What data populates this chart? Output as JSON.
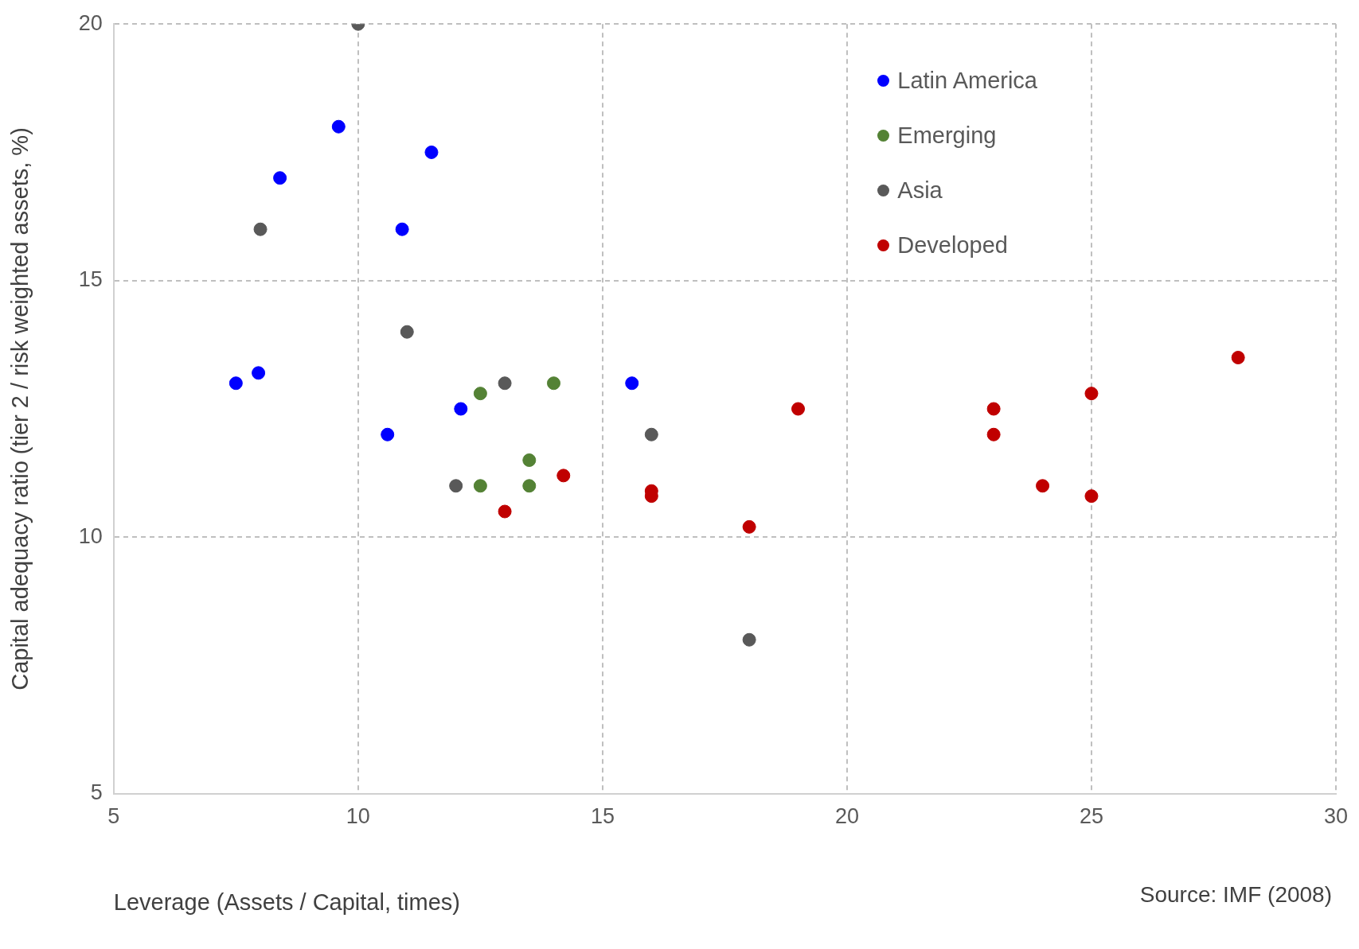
{
  "chart_data": {
    "type": "scatter",
    "xlabel": "Leverage (Assets / Capital, times)",
    "ylabel": "Capital adequacy ratio (tier 2 / risk weighted assets, %)",
    "annotations": [
      "Source: IMF (2008)"
    ],
    "xlim": [
      5,
      30
    ],
    "xticks": [
      5,
      10,
      15,
      20,
      25,
      30
    ],
    "ylim": [
      5,
      20
    ],
    "yticks": [
      5,
      10,
      15,
      20
    ],
    "grid": true,
    "legend": "top right",
    "marker": "circle",
    "series": [
      {
        "name": "Latin America",
        "color": "#0000ff",
        "x": [
          7.5,
          7.96,
          8.4,
          9.6,
          10.9,
          11.5,
          10.6,
          12.1,
          15.6
        ],
        "values": [
          13.0,
          13.2,
          17.0,
          18.0,
          16.0,
          17.5,
          12.0,
          12.5,
          13.0
        ]
      },
      {
        "name": "Emerging",
        "color": "#548235",
        "x": [
          12.5,
          14.0,
          13.5,
          12.5,
          13.5
        ],
        "values": [
          12.8,
          13.0,
          11.5,
          11.0,
          11.0
        ]
      },
      {
        "name": "Asia",
        "color": "#595959",
        "x": [
          10.0,
          8.0,
          11.0,
          13.0,
          16.0,
          12.0,
          18.0
        ],
        "values": [
          20.0,
          16.0,
          14.0,
          13.0,
          12.0,
          11.0,
          8.0
        ]
      },
      {
        "name": "Developed",
        "color": "#c00000",
        "x": [
          13.0,
          14.2,
          16.0,
          16.0,
          18.0,
          19.0,
          23.0,
          23.0,
          24.0,
          25.0,
          25.0,
          28.0
        ],
        "values": [
          10.5,
          11.2,
          10.9,
          10.8,
          10.2,
          12.5,
          12.5,
          12.0,
          11.0,
          12.8,
          10.8,
          13.5
        ]
      }
    ]
  }
}
